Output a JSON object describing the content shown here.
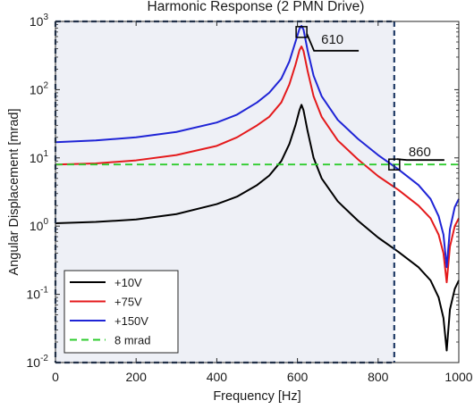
{
  "chart_data": {
    "type": "line",
    "title": "Harmonic Response (2 PMN Drive)",
    "xlabel": "Frequency [Hz]",
    "ylabel": "Angular Displacement [mrad]",
    "xlim": [
      0,
      1000
    ],
    "ylim": [
      0.01,
      1000
    ],
    "yscale": "log",
    "x_ticks": [
      "0",
      "200",
      "400",
      "600",
      "800",
      "1000"
    ],
    "y_ticks": [
      {
        "base": "10",
        "exp": "-2"
      },
      {
        "base": "10",
        "exp": "-1"
      },
      {
        "base": "10",
        "exp": "0"
      },
      {
        "base": "10",
        "exp": "1"
      },
      {
        "base": "10",
        "exp": "2"
      },
      {
        "base": "10",
        "exp": "3"
      }
    ],
    "legend_position": "bottom-left",
    "series": [
      {
        "name": "+10V",
        "color": "#000000",
        "style": "solid",
        "x": [
          0,
          100,
          200,
          300,
          400,
          450,
          500,
          530,
          560,
          580,
          595,
          605,
          610,
          615,
          625,
          640,
          660,
          700,
          750,
          800,
          850,
          900,
          930,
          950,
          962,
          970,
          978,
          990,
          1000
        ],
        "y": [
          1.1,
          1.15,
          1.25,
          1.5,
          2.1,
          2.7,
          4.0,
          5.5,
          9.0,
          16,
          30,
          50,
          60,
          50,
          25,
          10,
          5.0,
          2.3,
          1.2,
          0.68,
          0.42,
          0.25,
          0.16,
          0.09,
          0.045,
          0.015,
          0.06,
          0.12,
          0.16
        ]
      },
      {
        "name": "+75V",
        "color": "#e41a1c",
        "style": "solid",
        "x": [
          0,
          100,
          200,
          300,
          400,
          450,
          500,
          530,
          560,
          580,
          595,
          605,
          610,
          615,
          625,
          640,
          660,
          700,
          750,
          800,
          850,
          900,
          930,
          950,
          962,
          970,
          978,
          990,
          1000
        ],
        "y": [
          8.0,
          8.3,
          9.2,
          11,
          15,
          20,
          30,
          40,
          65,
          120,
          230,
          380,
          430,
          370,
          190,
          80,
          40,
          18,
          9.5,
          5.4,
          3.4,
          2.0,
          1.3,
          0.75,
          0.4,
          0.15,
          0.5,
          1.0,
          1.3
        ]
      },
      {
        "name": "+150V",
        "color": "#1f24d6",
        "style": "solid",
        "x": [
          0,
          100,
          200,
          300,
          400,
          450,
          500,
          530,
          560,
          580,
          595,
          605,
          610,
          615,
          625,
          640,
          660,
          700,
          750,
          800,
          850,
          900,
          930,
          950,
          962,
          970,
          978,
          990,
          1000
        ],
        "y": [
          17,
          18,
          20,
          24,
          33,
          43,
          65,
          90,
          145,
          260,
          500,
          780,
          860,
          760,
          380,
          160,
          80,
          36,
          19,
          11,
          6.8,
          4.0,
          2.5,
          1.4,
          0.75,
          0.25,
          0.9,
          1.9,
          2.5
        ]
      },
      {
        "name": "8 mrad",
        "color": "#2ecc2e",
        "style": "dashed",
        "x": [
          0,
          1000
        ],
        "y": [
          8,
          8
        ]
      }
    ],
    "annotations": [
      {
        "text": "610",
        "x": 610,
        "y": 700
      },
      {
        "text": "860",
        "x": 840,
        "y": 8
      }
    ],
    "shaded_region": {
      "x": [
        0,
        840
      ],
      "ylim": [
        0.01,
        1000
      ]
    }
  }
}
